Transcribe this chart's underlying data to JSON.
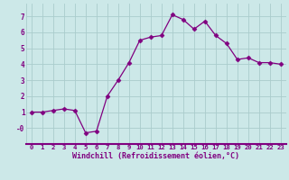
{
  "x": [
    0,
    1,
    2,
    3,
    4,
    5,
    6,
    7,
    8,
    9,
    10,
    11,
    12,
    13,
    14,
    15,
    16,
    17,
    18,
    19,
    20,
    21,
    22,
    23
  ],
  "y": [
    1.0,
    1.0,
    1.1,
    1.2,
    1.1,
    -0.3,
    -0.2,
    2.0,
    3.0,
    4.1,
    5.5,
    5.7,
    5.8,
    7.1,
    6.8,
    6.2,
    6.7,
    5.8,
    5.3,
    4.3,
    4.4,
    4.1,
    4.1,
    4.0
  ],
  "line_color": "#800080",
  "marker": "D",
  "marker_size": 2.5,
  "bg_color": "#cce8e8",
  "grid_color": "#aacccc",
  "xlabel": "Windchill (Refroidissement éolien,°C)",
  "xlabel_color": "#800080",
  "tick_color": "#800080",
  "ylim": [
    -1.0,
    7.8
  ],
  "xlim": [
    -0.5,
    23.5
  ],
  "yticks": [
    0,
    1,
    2,
    3,
    4,
    5,
    6,
    7
  ],
  "ytick_labels": [
    "-0",
    "1",
    "2",
    "3",
    "4",
    "5",
    "6",
    "7"
  ],
  "xtick_labels": [
    "0",
    "1",
    "2",
    "3",
    "4",
    "5",
    "6",
    "7",
    "8",
    "9",
    "10",
    "11",
    "12",
    "13",
    "14",
    "15",
    "16",
    "17",
    "18",
    "19",
    "20",
    "21",
    "22",
    "23"
  ],
  "axis_line_color": "#800080"
}
